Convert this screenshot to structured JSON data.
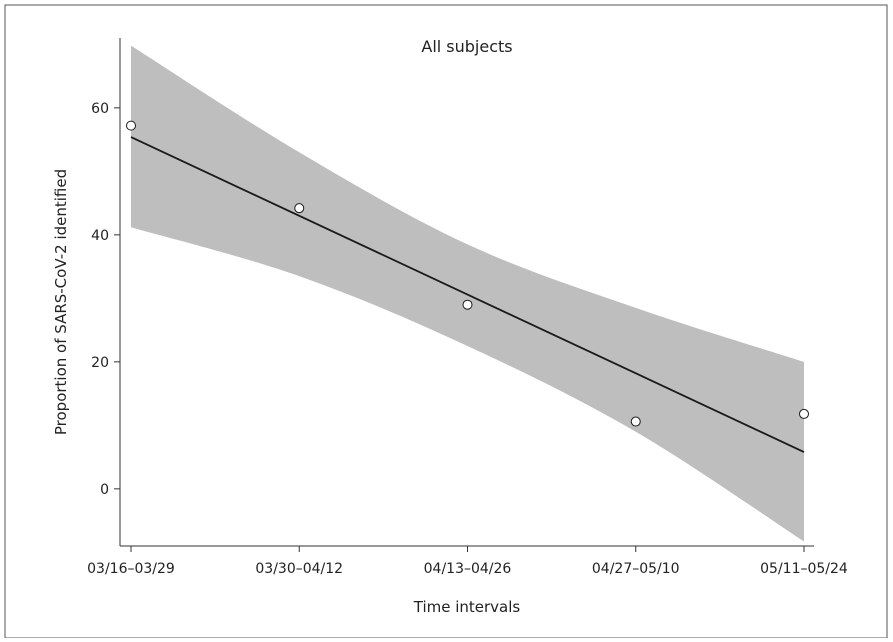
{
  "chart_data": {
    "type": "line",
    "title": "All subjects",
    "xlabel": "Time intervals",
    "ylabel": "Proportion of SARS-CoV-2 identified",
    "categories": [
      "03/16–03/29",
      "03/30–04/12",
      "04/13–04/26",
      "04/27–05/10",
      "05/11–05/24"
    ],
    "ylim": [
      -9,
      71
    ],
    "yticks": [
      0,
      20,
      40,
      60
    ],
    "points": [
      57.2,
      44.2,
      29.0,
      10.6,
      11.8
    ],
    "fit": {
      "start": 55.4,
      "end": 5.8
    },
    "ci_upper": [
      69.8,
      53.0,
      38.5,
      28.5,
      20.0
    ],
    "ci_lower": [
      41.2,
      33.5,
      22.5,
      9.0,
      -8.3
    ],
    "grid": false,
    "legend": "none",
    "colors": {
      "band": "#bebebe",
      "line": "#1a1a1a",
      "marker_edge": "#1a1a1a",
      "frame": "#333333"
    }
  }
}
